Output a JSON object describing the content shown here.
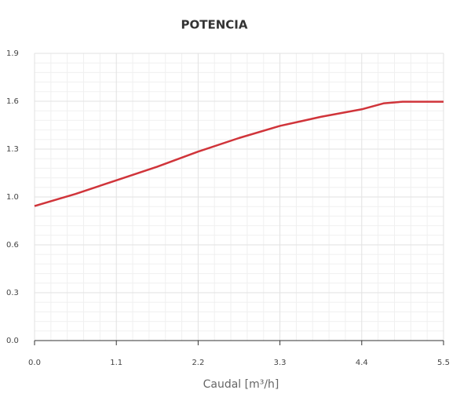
{
  "chart_data": {
    "type": "line",
    "title": "POTENCIA",
    "x_label": "Caudal [m³/h]",
    "x": [
      0,
      0.55,
      1.1,
      1.65,
      2.2,
      2.75,
      3.3,
      3.85,
      4.4,
      4.7,
      4.95,
      5.5
    ],
    "series": [
      {
        "name": "Potencia",
        "color": "#d0343a",
        "values": [
          0.89,
          0.97,
          1.06,
          1.15,
          1.25,
          1.34,
          1.42,
          1.48,
          1.53,
          1.57,
          1.58,
          1.58
        ]
      }
    ],
    "xlim": [
      0,
      5.5
    ],
    "xticks": [
      {
        "value": 0,
        "label": "0.0"
      },
      1.1,
      2.2,
      3.3,
      4.4,
      5.5
    ],
    "ylim": [
      0,
      1.9
    ],
    "yticks": [
      {
        "value": 0,
        "label": "0.0"
      },
      {
        "value": 0.3167,
        "label": "0.3"
      },
      {
        "value": 0.6333,
        "label": "0.6"
      },
      {
        "value": 0.95,
        "label": "1.0"
      },
      {
        "value": 1.2667,
        "label": "1.3"
      },
      {
        "value": 1.5833,
        "label": "1.6"
      },
      1.9
    ],
    "grid": true,
    "minor_grid": true
  }
}
